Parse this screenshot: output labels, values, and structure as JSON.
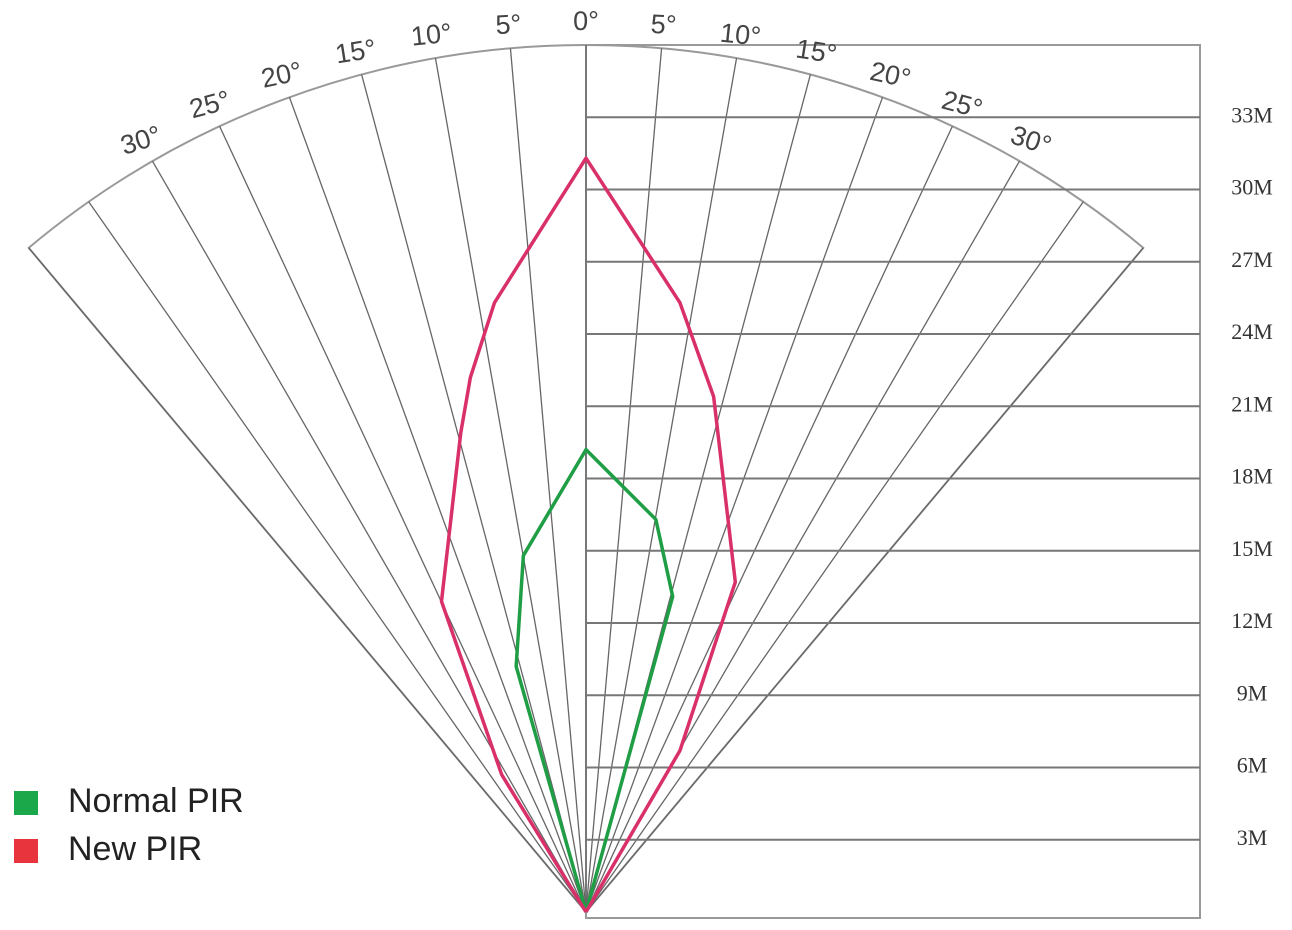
{
  "chart_data": {
    "type": "detection-pattern",
    "ylim": [
      0,
      36
    ],
    "yticks": [
      {
        "value": 3,
        "label": "3M"
      },
      {
        "value": 6,
        "label": "6M"
      },
      {
        "value": 9,
        "label": "9M"
      },
      {
        "value": 12,
        "label": "12M"
      },
      {
        "value": 15,
        "label": "15M"
      },
      {
        "value": 18,
        "label": "18M"
      },
      {
        "value": 21,
        "label": "21M"
      },
      {
        "value": 24,
        "label": "24M"
      },
      {
        "value": 27,
        "label": "27M"
      },
      {
        "value": 30,
        "label": "30M"
      },
      {
        "value": 33,
        "label": "33M"
      }
    ],
    "anglelim": [
      -40,
      40
    ],
    "angleticks": [
      {
        "value": -40,
        "label": null
      },
      {
        "value": -35,
        "label": null
      },
      {
        "value": -30,
        "label": "30°"
      },
      {
        "value": -25,
        "label": "25°"
      },
      {
        "value": -20,
        "label": "20°"
      },
      {
        "value": -15,
        "label": "15°"
      },
      {
        "value": -10,
        "label": "10°"
      },
      {
        "value": -5,
        "label": "5°"
      },
      {
        "value": 0,
        "label": "0°"
      },
      {
        "value": 5,
        "label": "5°"
      },
      {
        "value": 10,
        "label": "10°"
      },
      {
        "value": 15,
        "label": "15°"
      },
      {
        "value": 20,
        "label": "20°"
      },
      {
        "value": 25,
        "label": "25°"
      },
      {
        "value": 30,
        "label": "30°"
      },
      {
        "value": 35,
        "label": null
      },
      {
        "value": 40,
        "label": null
      }
    ],
    "series": [
      {
        "name": "Normal PIR",
        "color": "#1f9e45",
        "legend_color": "#1aa84a",
        "x": [
          0,
          -2.9,
          -2.6,
          0,
          2.9,
          3.6,
          0
        ],
        "values": [
          0,
          10.2,
          14.8,
          19.2,
          16.3,
          13.1,
          0
        ]
      },
      {
        "name": "New PIR",
        "color": "#d9306a",
        "legend_color": "#e8343c",
        "x": [
          0,
          -3.5,
          -6.0,
          -5.2,
          -4.8,
          -3.8,
          0,
          3.9,
          5.3,
          6.2,
          3.9,
          0
        ],
        "values": [
          0,
          5.7,
          12.9,
          19.9,
          22.2,
          25.3,
          31.3,
          25.3,
          21.4,
          13.7,
          6.7,
          0
        ]
      }
    ]
  }
}
